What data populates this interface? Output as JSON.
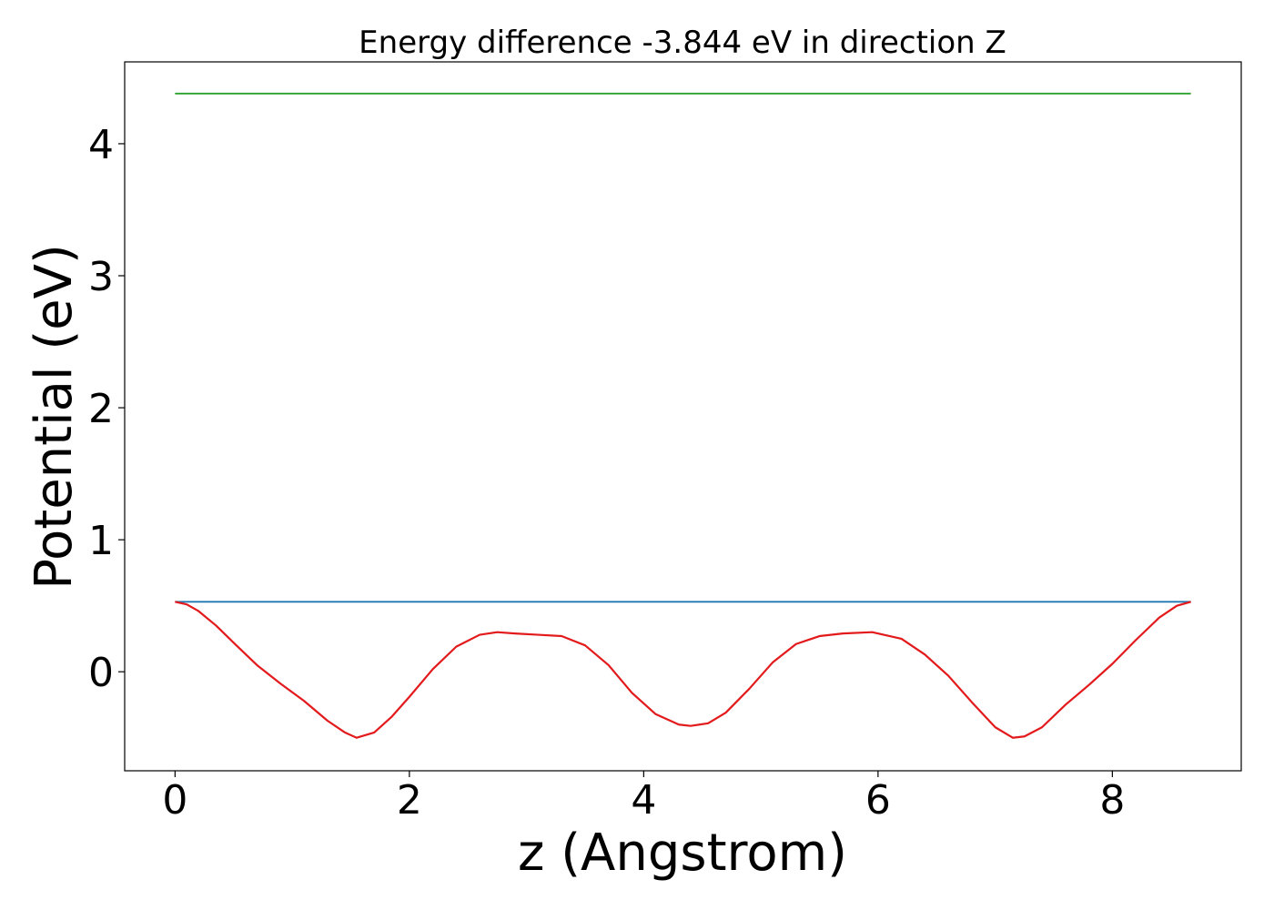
{
  "chart_data": {
    "type": "line",
    "title": "Energy difference -3.844 eV in direction Z",
    "xlabel": "z (Angstrom)",
    "ylabel": "Potential (eV)",
    "xlim": [
      -0.43,
      9.1
    ],
    "ylim": [
      -0.75,
      4.62
    ],
    "x_ticks": [
      0,
      2,
      4,
      6,
      8
    ],
    "y_ticks": [
      0,
      1,
      2,
      3,
      4
    ],
    "grid": false,
    "legend": "none",
    "series": [
      {
        "color": "#2ca02c",
        "x": [
          0,
          8.67
        ],
        "y": [
          4.38,
          4.38
        ]
      },
      {
        "color": "#1f77b4",
        "x": [
          0,
          8.67
        ],
        "y": [
          0.53,
          0.53
        ]
      },
      {
        "color": "#e31a1c",
        "x": [
          0,
          0.1,
          0.2,
          0.35,
          0.5,
          0.7,
          0.9,
          1.1,
          1.3,
          1.45,
          1.55,
          1.7,
          1.85,
          2.0,
          2.2,
          2.4,
          2.6,
          2.75,
          2.9,
          3.1,
          3.3,
          3.5,
          3.7,
          3.9,
          4.1,
          4.3,
          4.4,
          4.55,
          4.7,
          4.9,
          5.1,
          5.3,
          5.5,
          5.7,
          5.95,
          6.2,
          6.4,
          6.6,
          6.8,
          7.0,
          7.15,
          7.25,
          7.4,
          7.6,
          7.8,
          8.0,
          8.2,
          8.4,
          8.55,
          8.67
        ],
        "y": [
          0.53,
          0.51,
          0.46,
          0.35,
          0.22,
          0.05,
          -0.09,
          -0.22,
          -0.37,
          -0.46,
          -0.5,
          -0.46,
          -0.34,
          -0.19,
          0.02,
          0.19,
          0.28,
          0.3,
          0.29,
          0.28,
          0.27,
          0.2,
          0.05,
          -0.16,
          -0.32,
          -0.4,
          -0.41,
          -0.39,
          -0.31,
          -0.13,
          0.07,
          0.21,
          0.27,
          0.29,
          0.3,
          0.25,
          0.13,
          -0.03,
          -0.23,
          -0.42,
          -0.5,
          -0.49,
          -0.42,
          -0.25,
          -0.1,
          0.06,
          0.24,
          0.41,
          0.5,
          0.53
        ]
      }
    ]
  }
}
